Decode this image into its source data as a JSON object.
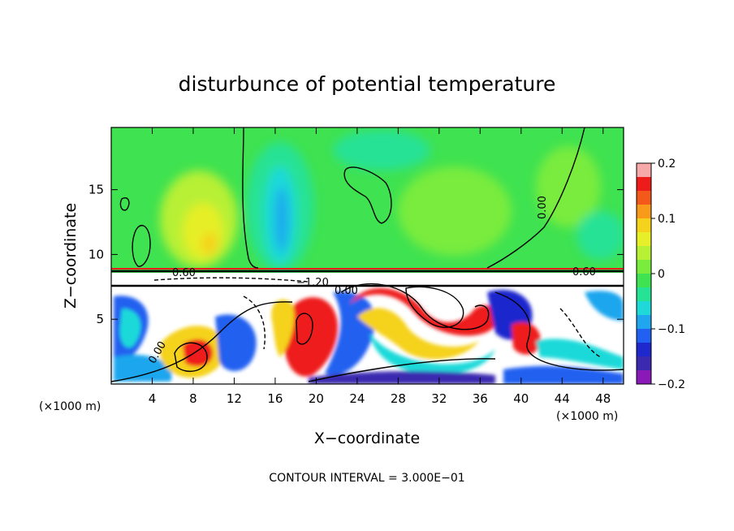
{
  "chart_data": {
    "type": "heatmap",
    "title": "disturbunce of potential temperature",
    "xlabel": "X−coordinate",
    "ylabel": "Z−coordinate",
    "x_unit": "(×1000 m)",
    "y_unit": "(×1000 m)",
    "xlim": [
      0,
      50
    ],
    "ylim": [
      0,
      19.8
    ],
    "x_ticks": [
      4,
      8,
      12,
      16,
      20,
      24,
      28,
      32,
      36,
      40,
      44,
      48
    ],
    "y_ticks": [
      5,
      10,
      15
    ],
    "colorbar": {
      "range": [
        -0.2,
        0.2
      ],
      "ticks": [
        "0.2",
        "0.1",
        "0",
        "−0.1",
        "−0.2"
      ],
      "colors": [
        "#f7a9a9",
        "#ee1b1b",
        "#f35a1a",
        "#f89a1a",
        "#f5d21c",
        "#e6ef27",
        "#b7f035",
        "#79ec3c",
        "#3fe250",
        "#25e295",
        "#1fd9d9",
        "#1fa6ee",
        "#2160f0",
        "#1f28cd",
        "#3b2ab0",
        "#8a1ab7"
      ]
    },
    "contour_labels": [
      "0.60",
      "−1.20",
      "0.00",
      "0.00",
      "0.00",
      "0.60"
    ],
    "contour_interval_text": "CONTOUR INTERVAL =  3.000E−01",
    "grid": false,
    "legend": "colorbar-right"
  }
}
